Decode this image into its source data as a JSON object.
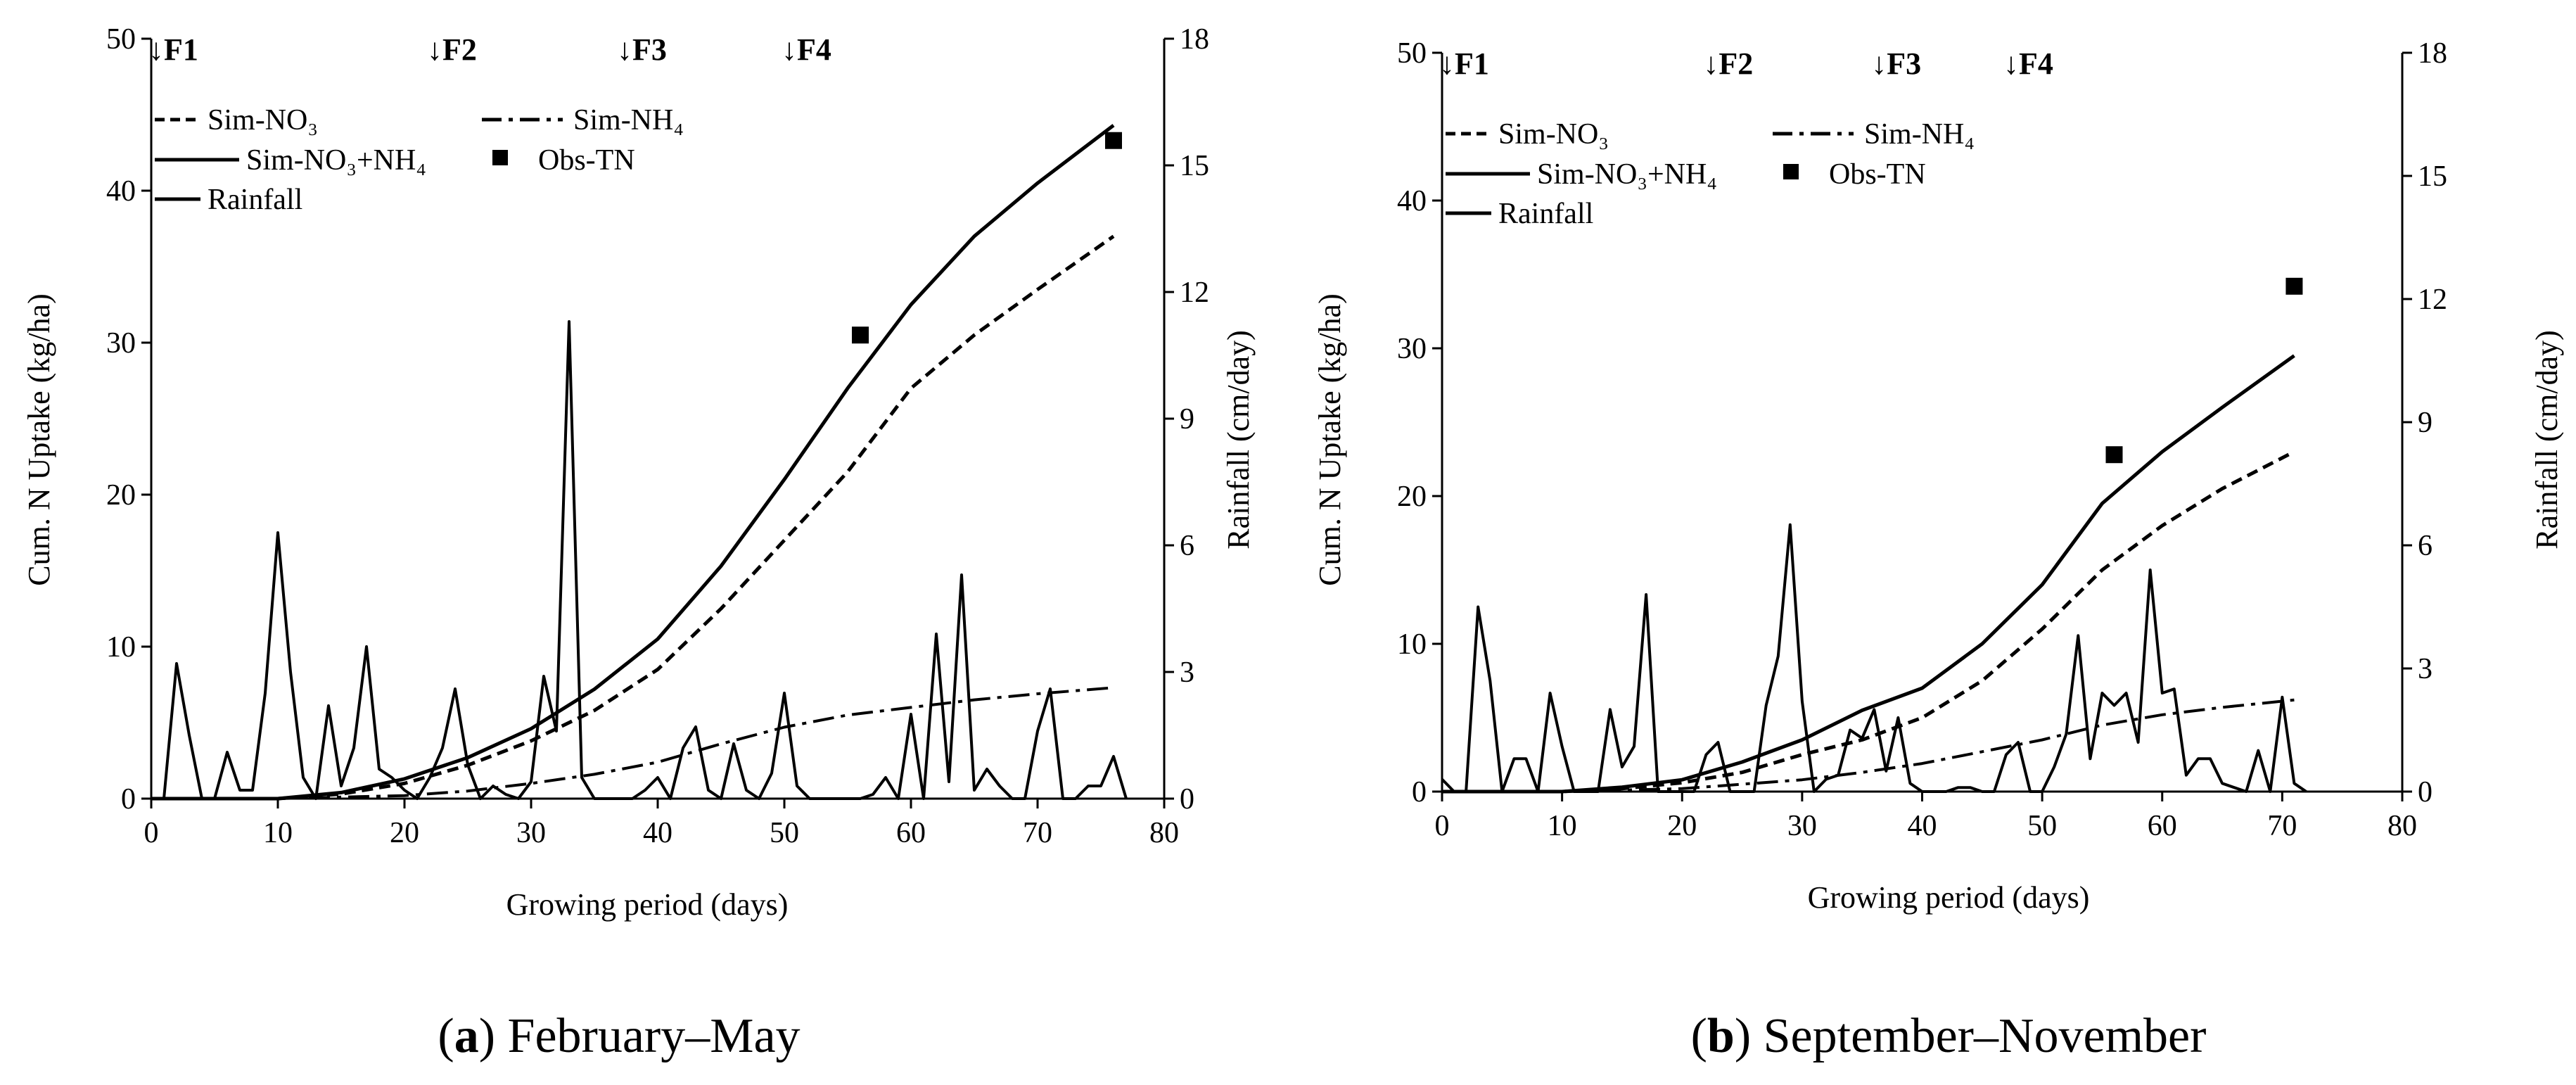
{
  "chart_data": [
    {
      "panel": "a",
      "type": "line",
      "caption_letter": "a",
      "caption_text": "February–May",
      "xlabel": "Growing period (days)",
      "ylabel": "Cum. N Uptake (kg/ha)",
      "y2label": "Rainfall (cm/day)",
      "xlim": [
        0,
        80
      ],
      "ylim": [
        0,
        50
      ],
      "y2lim": [
        0,
        18
      ],
      "xticks": [
        0,
        10,
        20,
        30,
        40,
        50,
        60,
        70,
        80
      ],
      "yticks": [
        0,
        10,
        20,
        30,
        40,
        50
      ],
      "y2ticks": [
        0,
        3,
        6,
        9,
        12,
        15,
        18
      ],
      "fertilizer_markers": [
        {
          "label": "↓F1",
          "day": 0
        },
        {
          "label": "↓F2",
          "day": 22
        },
        {
          "label": "↓F3",
          "day": 37
        },
        {
          "label": "↓F4",
          "day": 50
        }
      ],
      "legend": [
        {
          "label": "Sim-NO₃",
          "style": "dashed"
        },
        {
          "label": "Sim-NH₄",
          "style": "dashdot"
        },
        {
          "label": "Sim-NO₃+NH₄",
          "style": "solid"
        },
        {
          "label": "Obs-TN",
          "style": "square"
        },
        {
          "label": "Rainfall",
          "style": "solid"
        }
      ],
      "series": [
        {
          "name": "Sim-NO3",
          "axis": "left",
          "style": "dashed",
          "x": [
            0,
            10,
            15,
            20,
            25,
            30,
            35,
            40,
            45,
            50,
            55,
            60,
            65,
            70,
            76
          ],
          "y": [
            0,
            0,
            0.3,
            1.0,
            2.2,
            3.8,
            5.8,
            8.5,
            12.5,
            17,
            21.5,
            27,
            30.5,
            33.5,
            37
          ]
        },
        {
          "name": "Sim-NH4",
          "axis": "left",
          "style": "dashdot",
          "x": [
            0,
            10,
            15,
            20,
            25,
            30,
            35,
            40,
            45,
            50,
            55,
            60,
            65,
            70,
            76
          ],
          "y": [
            0,
            0,
            0.1,
            0.2,
            0.5,
            1.0,
            1.6,
            2.4,
            3.6,
            4.7,
            5.5,
            6.0,
            6.5,
            6.9,
            7.3
          ]
        },
        {
          "name": "Sim-NO3+NH4",
          "axis": "left",
          "style": "solid",
          "x": [
            0,
            10,
            15,
            20,
            25,
            30,
            35,
            40,
            45,
            50,
            55,
            60,
            65,
            70,
            76
          ],
          "y": [
            0,
            0,
            0.4,
            1.3,
            2.7,
            4.6,
            7.2,
            10.5,
            15.3,
            21,
            27,
            32.5,
            37,
            40.5,
            44.3
          ]
        },
        {
          "name": "Obs-TN",
          "axis": "left",
          "style": "square",
          "x": [
            56,
            76
          ],
          "y": [
            30.5,
            43.3
          ]
        },
        {
          "name": "Rainfall",
          "axis": "right",
          "style": "solid",
          "x": [
            0,
            1,
            2,
            3,
            4,
            5,
            6,
            7,
            8,
            9,
            10,
            11,
            12,
            13,
            14,
            15,
            16,
            17,
            18,
            19,
            20,
            21,
            22,
            23,
            24,
            25,
            26,
            27,
            28,
            29,
            30,
            31,
            32,
            33,
            34,
            35,
            36,
            37,
            38,
            39,
            40,
            41,
            42,
            43,
            44,
            45,
            46,
            47,
            48,
            49,
            50,
            51,
            52,
            53,
            54,
            55,
            56,
            57,
            58,
            59,
            60,
            61,
            62,
            63,
            64,
            65,
            66,
            67,
            68,
            69,
            70,
            71,
            72,
            73,
            74,
            75,
            76,
            77
          ],
          "y": [
            0,
            0,
            3.2,
            1.5,
            0,
            0,
            1.1,
            0.2,
            0.2,
            2.5,
            6.3,
            3.0,
            0.5,
            0,
            2.2,
            0.3,
            1.2,
            3.6,
            0.7,
            0.5,
            0.2,
            0,
            0.5,
            1.2,
            2.6,
            0.8,
            0,
            0.3,
            0.1,
            0,
            0.4,
            2.9,
            1.6,
            11.3,
            0.5,
            0,
            0,
            0,
            0,
            0.2,
            0.5,
            0,
            1.2,
            1.7,
            0.2,
            0,
            1.3,
            0.2,
            0,
            0.6,
            2.5,
            0.3,
            0,
            0,
            0,
            0,
            0,
            0.1,
            0.5,
            0,
            2.0,
            0,
            3.9,
            0.4,
            5.3,
            0.2,
            0.7,
            0.3,
            0,
            0,
            1.6,
            2.6,
            0,
            0,
            0.3,
            0.3,
            1.0,
            0
          ]
        }
      ]
    },
    {
      "panel": "b",
      "type": "line",
      "caption_letter": "b",
      "caption_text": "September–November",
      "xlabel": "Growing period (days)",
      "ylabel": "Cum. N Uptake (kg/ha)",
      "y2label": "Rainfall (cm/day)",
      "xlim": [
        0,
        80
      ],
      "ylim": [
        0,
        50
      ],
      "y2lim": [
        0,
        18
      ],
      "xticks": [
        0,
        10,
        20,
        30,
        40,
        50,
        60,
        70,
        80
      ],
      "yticks": [
        0,
        10,
        20,
        30,
        40,
        50
      ],
      "y2ticks": [
        0,
        3,
        6,
        9,
        12,
        15,
        18
      ],
      "fertilizer_markers": [
        {
          "label": "↓F1",
          "day": 0
        },
        {
          "label": "↓F2",
          "day": 22
        },
        {
          "label": "↓F3",
          "day": 36
        },
        {
          "label": "↓F4",
          "day": 47
        }
      ],
      "legend": [
        {
          "label": "Sim-NO₃",
          "style": "dashed"
        },
        {
          "label": "Sim-NH₄",
          "style": "dashdot"
        },
        {
          "label": "Sim-NO₃+NH₄",
          "style": "solid"
        },
        {
          "label": "Obs-TN",
          "style": "square"
        },
        {
          "label": "Rainfall",
          "style": "solid"
        }
      ],
      "series": [
        {
          "name": "Sim-NO3",
          "axis": "left",
          "style": "dashed",
          "x": [
            0,
            10,
            15,
            20,
            25,
            30,
            35,
            40,
            45,
            50,
            55,
            60,
            65,
            71
          ],
          "y": [
            0,
            0,
            0.2,
            0.6,
            1.3,
            2.5,
            3.5,
            5,
            7.5,
            11,
            15,
            18,
            20.5,
            23
          ]
        },
        {
          "name": "Sim-NH4",
          "axis": "left",
          "style": "dashdot",
          "x": [
            0,
            10,
            15,
            20,
            25,
            30,
            35,
            40,
            45,
            50,
            55,
            60,
            65,
            71
          ],
          "y": [
            0,
            0,
            0.1,
            0.2,
            0.5,
            0.8,
            1.3,
            1.9,
            2.7,
            3.5,
            4.5,
            5.2,
            5.7,
            6.2
          ]
        },
        {
          "name": "Sim-NO3+NH4",
          "axis": "left",
          "style": "solid",
          "x": [
            0,
            10,
            15,
            20,
            25,
            30,
            35,
            40,
            45,
            50,
            55,
            60,
            65,
            71
          ],
          "y": [
            0,
            0,
            0.3,
            0.8,
            2.0,
            3.5,
            5.5,
            7.0,
            10,
            14,
            19.5,
            23,
            26,
            29.5
          ]
        },
        {
          "name": "Obs-TN",
          "axis": "left",
          "style": "square",
          "x": [
            56,
            71
          ],
          "y": [
            22.8,
            34.2
          ]
        },
        {
          "name": "Rainfall",
          "axis": "right",
          "style": "solid",
          "x": [
            0,
            1,
            2,
            3,
            4,
            5,
            6,
            7,
            8,
            9,
            10,
            11,
            12,
            13,
            14,
            15,
            16,
            17,
            18,
            19,
            20,
            21,
            22,
            23,
            24,
            25,
            26,
            27,
            28,
            29,
            30,
            31,
            32,
            33,
            34,
            35,
            36,
            37,
            38,
            39,
            40,
            41,
            42,
            43,
            44,
            45,
            46,
            47,
            48,
            49,
            50,
            51,
            52,
            53,
            54,
            55,
            56,
            57,
            58,
            59,
            60,
            61,
            62,
            63,
            64,
            65,
            66,
            67,
            68,
            69,
            70,
            71,
            72
          ],
          "y": [
            0.3,
            0,
            0,
            4.5,
            2.7,
            0,
            0.8,
            0.8,
            0,
            2.4,
            1.1,
            0,
            0,
            0,
            2.0,
            0.6,
            1.1,
            4.8,
            0,
            0,
            0,
            0,
            0.9,
            1.2,
            0,
            0,
            0,
            2.1,
            3.3,
            6.5,
            2.2,
            0,
            0.3,
            0.4,
            1.5,
            1.3,
            2.0,
            0.5,
            1.8,
            0.2,
            0,
            0,
            0,
            0.1,
            0.1,
            0,
            0,
            0.9,
            1.2,
            0,
            0,
            0.6,
            1.4,
            3.8,
            0.8,
            2.4,
            2.1,
            2.4,
            1.2,
            5.4,
            2.4,
            2.5,
            0.4,
            0.8,
            0.8,
            0.2,
            0.1,
            0,
            1.0,
            0,
            2.3,
            0.2,
            0
          ]
        }
      ]
    }
  ]
}
